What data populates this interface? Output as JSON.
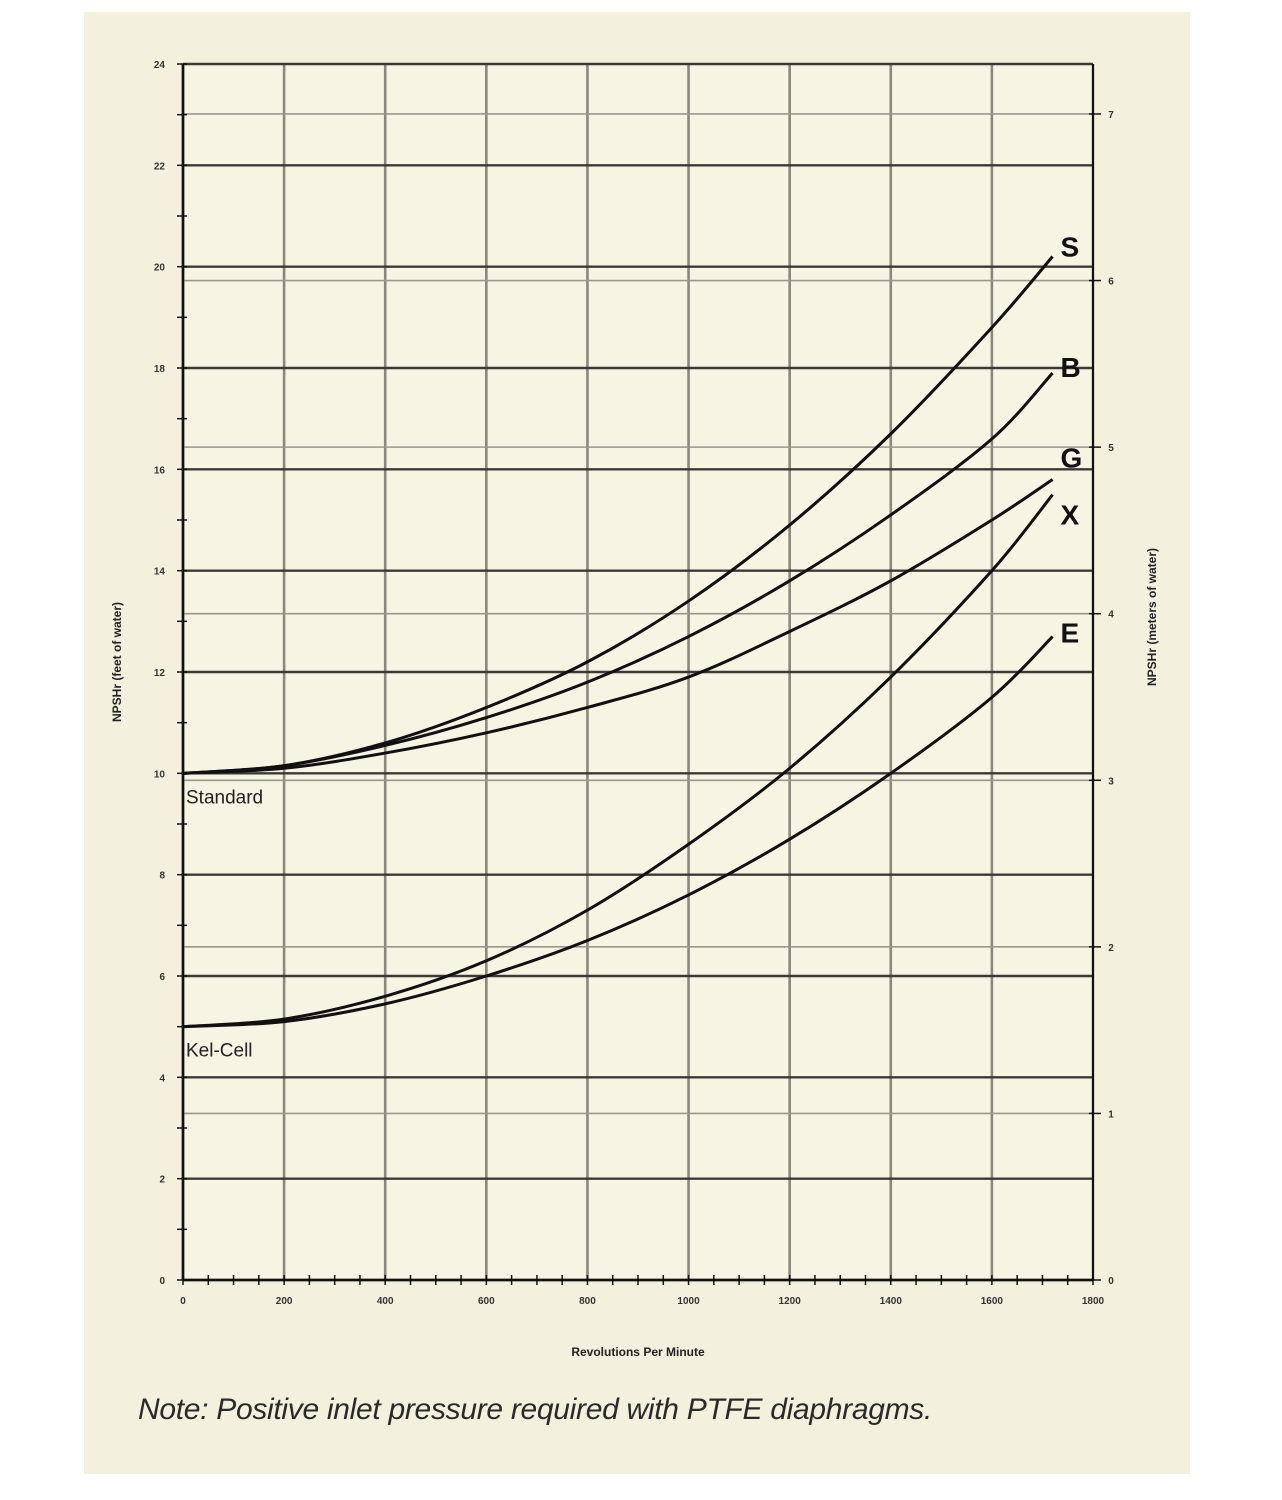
{
  "note": "Note: Positive inlet pressure required with PTFE diaphragms.",
  "chart_data": {
    "type": "line",
    "xlabel": "Revolutions Per Minute",
    "ylabel": "NPSHr (feet of water)",
    "y2label": "NPSHr (meters of water)",
    "xlim": [
      0,
      1800
    ],
    "ylim": [
      0,
      24
    ],
    "y2lim": [
      0,
      7.3
    ],
    "x_ticks": [
      "0",
      "200",
      "400",
      "600",
      "800",
      "1000",
      "1200",
      "1400",
      "1600",
      "1800"
    ],
    "y_ticks": [
      "0",
      "2",
      "4",
      "6",
      "8",
      "10",
      "12",
      "14",
      "16",
      "18",
      "20",
      "22",
      "24"
    ],
    "y2_ticks": [
      "0",
      "1",
      "2",
      "3",
      "4",
      "5",
      "6",
      "7"
    ],
    "grid": true,
    "baseline_labels": [
      {
        "text": "Standard",
        "y": 10
      },
      {
        "text": "Kel-Cell",
        "y": 5
      }
    ],
    "series": [
      {
        "name": "S",
        "x": [
          0,
          200,
          400,
          600,
          800,
          1000,
          1200,
          1400,
          1600,
          1720
        ],
        "y": [
          10,
          10.15,
          10.6,
          11.3,
          12.2,
          13.4,
          14.9,
          16.7,
          18.8,
          20.2
        ]
      },
      {
        "name": "B",
        "x": [
          0,
          200,
          400,
          600,
          800,
          1000,
          1200,
          1400,
          1600,
          1720
        ],
        "y": [
          10,
          10.15,
          10.55,
          11.1,
          11.8,
          12.7,
          13.8,
          15.1,
          16.6,
          17.9
        ]
      },
      {
        "name": "G",
        "x": [
          0,
          200,
          400,
          600,
          800,
          1000,
          1200,
          1400,
          1600,
          1720
        ],
        "y": [
          10,
          10.1,
          10.4,
          10.8,
          11.3,
          11.9,
          12.8,
          13.8,
          15.0,
          15.8
        ]
      },
      {
        "name": "X",
        "x": [
          0,
          200,
          400,
          600,
          800,
          1000,
          1200,
          1400,
          1600,
          1720
        ],
        "y": [
          5,
          5.15,
          5.6,
          6.3,
          7.3,
          8.6,
          10.1,
          11.9,
          14.0,
          15.5
        ]
      },
      {
        "name": "E",
        "x": [
          0,
          200,
          400,
          600,
          800,
          1000,
          1200,
          1400,
          1600,
          1720
        ],
        "y": [
          5,
          5.1,
          5.45,
          6.0,
          6.7,
          7.6,
          8.7,
          10.0,
          11.5,
          12.7
        ]
      }
    ]
  }
}
